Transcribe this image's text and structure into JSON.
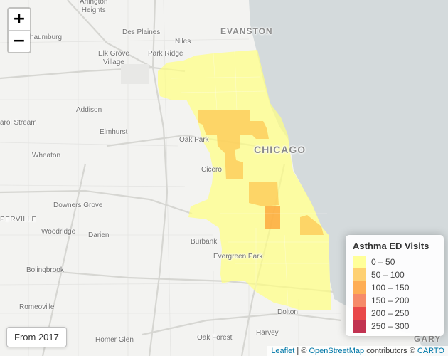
{
  "map": {
    "zoom_in": "+",
    "zoom_out": "−",
    "time_label": "From 2017",
    "attribution": {
      "leaflet": "Leaflet",
      "separator": " | © ",
      "osm": "OpenStreetMap",
      "contributors": " contributors © ",
      "carto": "CARTO"
    },
    "places": {
      "arlington_heights": "Arlington\nHeights",
      "des_plaines": "Des Plaines",
      "niles": "Niles",
      "evanston": "EVANSTON",
      "schaumburg": "haumburg",
      "park_ridge": "Park Ridge",
      "elk_grove_village": "Elk Grove\nVillage",
      "addison": "Addison",
      "carol_stream": "arol Stream",
      "elmhurst": "Elmhurst",
      "oak_park": "Oak Park",
      "chicago": "CHICAGO",
      "wheaton": "Wheaton",
      "cicero": "Cicero",
      "downers_grove": "Downers Grove",
      "naperville": "PERVILLE",
      "woodridge": "Woodridge",
      "darien": "Darien",
      "burbank": "Burbank",
      "evergreen_park": "Evergreen Park",
      "bolingbrook": "Bolingbrook",
      "romeoville": "Romeoville",
      "dolton": "Dolton",
      "oak_forest": "Oak Forest",
      "harvey": "Harvey",
      "homer_glen": "Homer Glen",
      "gary": "GARY"
    }
  },
  "legend": {
    "title": "Asthma ED Visits",
    "items": [
      {
        "label": "0 – 50",
        "color": "#ffff80"
      },
      {
        "label": "50 – 100",
        "color": "#fec44f"
      },
      {
        "label": "100 – 150",
        "color": "#fe9929"
      },
      {
        "label": "150 – 200",
        "color": "#f46d43"
      },
      {
        "label": "200 – 250",
        "color": "#e31a1c"
      },
      {
        "label": "250 – 300",
        "color": "#b10026"
      }
    ]
  }
}
